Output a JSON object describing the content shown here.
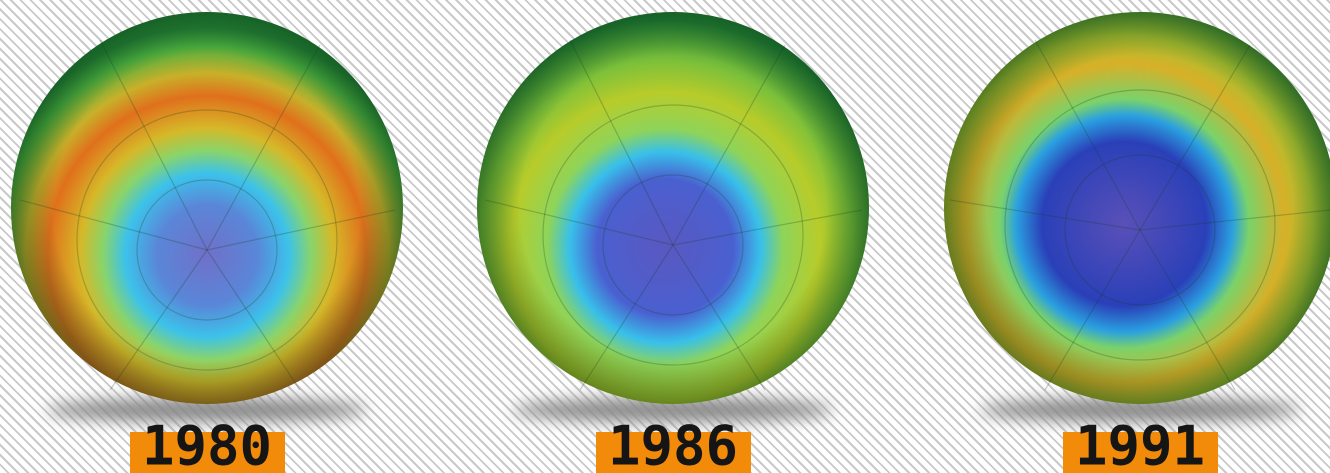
{
  "panels": [
    {
      "label": "1980"
    },
    {
      "label": "1986"
    },
    {
      "label": "1991"
    }
  ]
}
